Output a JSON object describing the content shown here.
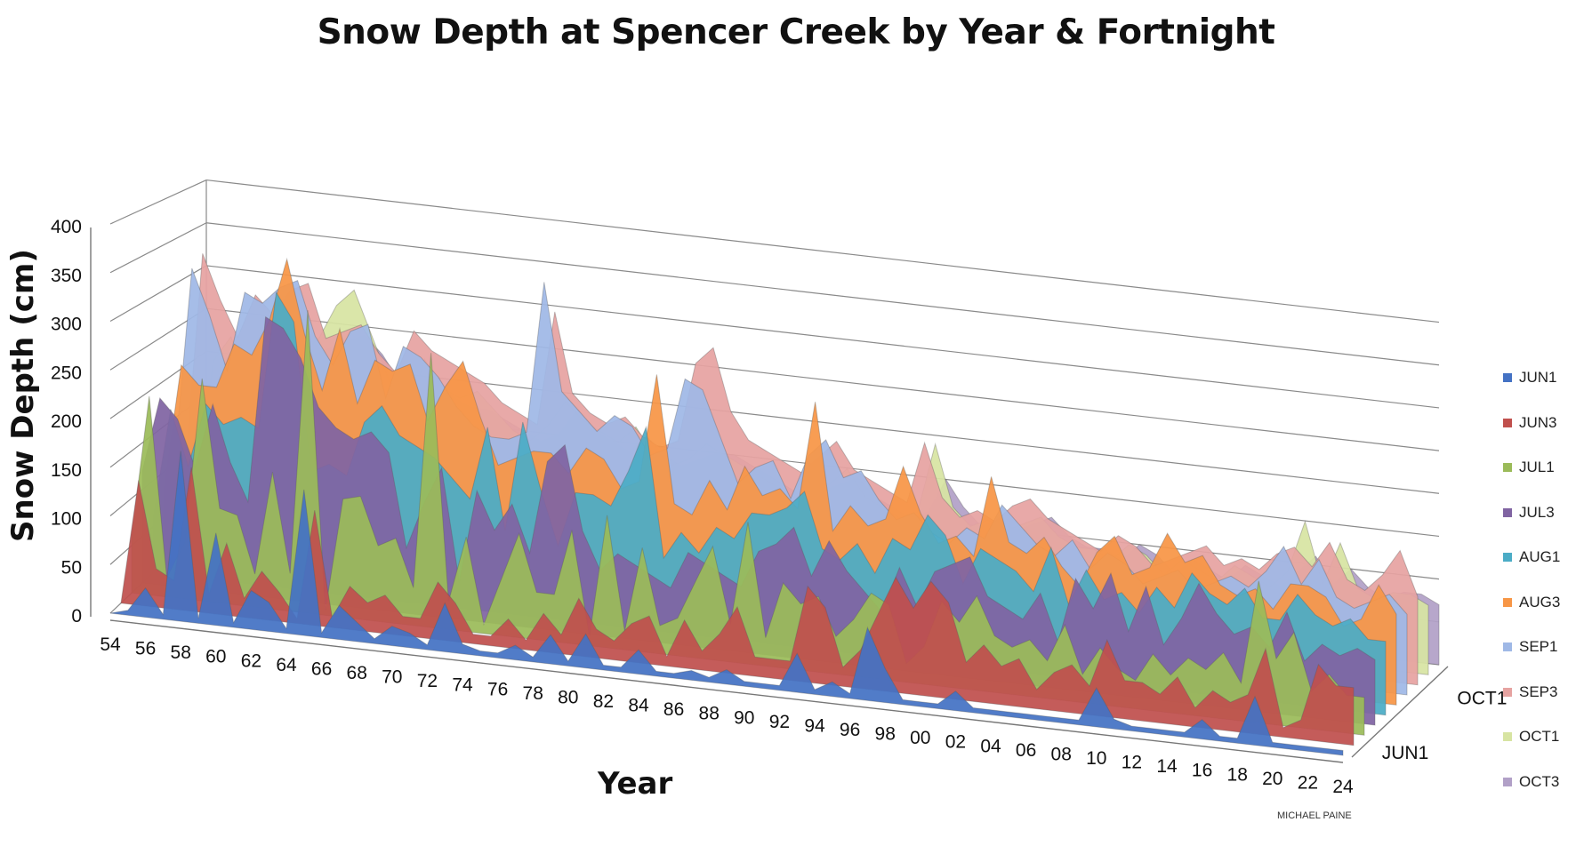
{
  "chart_data": {
    "type": "area",
    "subtype": "3d-area",
    "title": "Snow Depth at Spencer Creek by Year & Fortnight",
    "xlabel": "Year",
    "ylabel": "Snow Depth (cm)",
    "ylim": [
      0,
      400
    ],
    "y_ticks": [
      "0",
      "50",
      "100",
      "150",
      "200",
      "250",
      "300",
      "350",
      "400"
    ],
    "x_tick_labels": [
      "54",
      "56",
      "58",
      "60",
      "62",
      "64",
      "66",
      "68",
      "70",
      "72",
      "74",
      "76",
      "78",
      "80",
      "82",
      "84",
      "86",
      "88",
      "90",
      "92",
      "94",
      "96",
      "98",
      "00",
      "02",
      "04",
      "06",
      "08",
      "10",
      "12",
      "14",
      "16",
      "18",
      "20",
      "22",
      "24"
    ],
    "depth_tick_labels": [
      "JUN1",
      "OCT1"
    ],
    "legend_position": "right",
    "grid": true,
    "credit": "MICHAEL PAINE",
    "years": [
      1954,
      1955,
      1956,
      1957,
      1958,
      1959,
      1960,
      1961,
      1962,
      1963,
      1964,
      1965,
      1966,
      1967,
      1968,
      1969,
      1970,
      1971,
      1972,
      1973,
      1974,
      1975,
      1976,
      1977,
      1978,
      1979,
      1980,
      1981,
      1982,
      1983,
      1984,
      1985,
      1986,
      1987,
      1988,
      1989,
      1990,
      1991,
      1992,
      1993,
      1994,
      1995,
      1996,
      1997,
      1998,
      1999,
      2000,
      2001,
      2002,
      2003,
      2004,
      2005,
      2006,
      2007,
      2008,
      2009,
      2010,
      2011,
      2012,
      2013,
      2014,
      2015,
      2016,
      2017,
      2018,
      2019,
      2020,
      2021,
      2022,
      2023,
      2024
    ],
    "series": [
      {
        "name": "JUN1",
        "color": "#4472C4",
        "values": [
          0,
          5,
          30,
          5,
          175,
          5,
          95,
          5,
          40,
          30,
          5,
          150,
          5,
          35,
          20,
          5,
          20,
          15,
          5,
          50,
          10,
          5,
          5,
          15,
          5,
          30,
          5,
          35,
          5,
          5,
          25,
          5,
          5,
          10,
          5,
          15,
          5,
          5,
          5,
          40,
          5,
          15,
          5,
          75,
          35,
          5,
          5,
          5,
          20,
          5,
          5,
          5,
          5,
          5,
          5,
          5,
          40,
          10,
          5,
          5,
          5,
          5,
          20,
          5,
          5,
          50,
          5,
          5,
          5,
          5,
          5
        ]
      },
      {
        "name": "JUN3",
        "color": "#C0504D",
        "values": [
          0,
          130,
          40,
          30,
          150,
          20,
          75,
          20,
          50,
          30,
          5,
          120,
          10,
          45,
          30,
          40,
          20,
          20,
          60,
          40,
          10,
          10,
          30,
          10,
          40,
          20,
          60,
          30,
          20,
          40,
          50,
          10,
          50,
          20,
          40,
          70,
          20,
          20,
          20,
          100,
          80,
          20,
          40,
          80,
          120,
          90,
          120,
          100,
          40,
          60,
          40,
          50,
          20,
          40,
          50,
          30,
          80,
          40,
          40,
          30,
          50,
          20,
          40,
          30,
          40,
          90,
          10,
          20,
          80,
          60,
          60
        ]
      },
      {
        "name": "JUL1",
        "color": "#9BBB59",
        "values": [
          60,
          210,
          20,
          60,
          235,
          100,
          95,
          35,
          145,
          40,
          320,
          5,
          125,
          130,
          80,
          90,
          40,
          290,
          30,
          100,
          10,
          60,
          110,
          50,
          50,
          120,
          10,
          140,
          20,
          110,
          30,
          40,
          80,
          120,
          40,
          150,
          30,
          90,
          70,
          80,
          40,
          60,
          90,
          80,
          20,
          40,
          90,
          70,
          100,
          60,
          50,
          60,
          40,
          80,
          30,
          60,
          40,
          30,
          60,
          40,
          60,
          50,
          70,
          40,
          150,
          70,
          100,
          40,
          60,
          40,
          40
        ]
      },
      {
        "name": "JUL3",
        "color": "#8064A2",
        "values": [
          120,
          200,
          180,
          130,
          200,
          140,
          100,
          300,
          290,
          260,
          210,
          190,
          180,
          190,
          170,
          70,
          120,
          160,
          40,
          140,
          100,
          130,
          80,
          180,
          200,
          110,
          70,
          90,
          80,
          70,
          60,
          100,
          90,
          80,
          70,
          110,
          120,
          140,
          90,
          130,
          100,
          80,
          60,
          110,
          70,
          110,
          120,
          130,
          90,
          80,
          70,
          100,
          50,
          120,
          90,
          130,
          70,
          120,
          60,
          90,
          130,
          100,
          80,
          90,
          70,
          110,
          60,
          80,
          70,
          80,
          70
        ]
      },
      {
        "name": "AUG1",
        "color": "#4BACC6",
        "values": [
          60,
          180,
          120,
          190,
          170,
          180,
          170,
          320,
          290,
          130,
          140,
          130,
          190,
          210,
          180,
          170,
          160,
          140,
          120,
          200,
          90,
          210,
          140,
          80,
          140,
          140,
          130,
          170,
          220,
          80,
          110,
          90,
          120,
          110,
          140,
          140,
          150,
          170,
          110,
          100,
          120,
          90,
          130,
          120,
          160,
          140,
          90,
          130,
          120,
          110,
          90,
          140,
          80,
          120,
          90,
          100,
          80,
          110,
          90,
          130,
          110,
          100,
          120,
          90,
          90,
          120,
          100,
          90,
          100,
          80,
          80
        ]
      },
      {
        "name": "AUG3",
        "color": "#F79646",
        "values": [
          80,
          220,
          200,
          200,
          250,
          240,
          280,
          350,
          270,
          210,
          280,
          200,
          250,
          240,
          250,
          190,
          230,
          260,
          200,
          150,
          160,
          170,
          170,
          150,
          180,
          170,
          140,
          150,
          270,
          130,
          120,
          160,
          130,
          180,
          150,
          160,
          140,
          260,
          120,
          150,
          130,
          140,
          200,
          150,
          120,
          130,
          110,
          200,
          130,
          120,
          140,
          110,
          90,
          130,
          150,
          110,
          120,
          160,
          130,
          140,
          110,
          100,
          110,
          90,
          120,
          120,
          110,
          80,
          90,
          130,
          100
        ]
      },
      {
        "name": "SEP1",
        "color": "#9FB8E6",
        "values": [
          100,
          320,
          270,
          210,
          300,
          290,
          310,
          320,
          260,
          230,
          270,
          280,
          200,
          260,
          250,
          230,
          200,
          180,
          170,
          170,
          180,
          350,
          230,
          210,
          190,
          210,
          200,
          170,
          180,
          260,
          250,
          200,
          150,
          170,
          180,
          140,
          190,
          210,
          170,
          180,
          150,
          130,
          140,
          120,
          110,
          130,
          120,
          160,
          140,
          120,
          110,
          130,
          100,
          120,
          110,
          90,
          100,
          110,
          90,
          100,
          110,
          100,
          120,
          150,
          110,
          140,
          100,
          90,
          100,
          110,
          90
        ]
      },
      {
        "name": "SEP3",
        "color": "#E6A3A1",
        "values": [
          80,
          330,
          280,
          240,
          290,
          270,
          300,
          310,
          250,
          260,
          270,
          240,
          220,
          270,
          250,
          240,
          230,
          220,
          200,
          190,
          180,
          310,
          220,
          200,
          190,
          200,
          180,
          170,
          180,
          270,
          290,
          220,
          190,
          180,
          170,
          160,
          180,
          200,
          170,
          160,
          150,
          140,
          210,
          150,
          130,
          140,
          130,
          150,
          160,
          140,
          130,
          120,
          110,
          130,
          120,
          100,
          110,
          120,
          130,
          110,
          120,
          110,
          130,
          140,
          120,
          150,
          110,
          100,
          120,
          150,
          100
        ]
      },
      {
        "name": "OCT1",
        "color": "#D7E4A2",
        "values": [
          40,
          200,
          230,
          180,
          230,
          210,
          220,
          240,
          280,
          300,
          250,
          200,
          160,
          230,
          200,
          190,
          200,
          180,
          160,
          150,
          170,
          200,
          180,
          170,
          160,
          180,
          150,
          140,
          150,
          170,
          160,
          150,
          140,
          130,
          120,
          130,
          140,
          160,
          130,
          120,
          110,
          120,
          200,
          130,
          110,
          120,
          110,
          120,
          130,
          110,
          100,
          100,
          90,
          110,
          100,
          80,
          100,
          90,
          80,
          100,
          90,
          80,
          100,
          160,
          90,
          140,
          90,
          80,
          90,
          90,
          80
        ]
      },
      {
        "name": "OCT3",
        "color": "#B1A0C7",
        "values": [
          30,
          190,
          210,
          170,
          210,
          200,
          210,
          220,
          230,
          240,
          220,
          190,
          150,
          200,
          180,
          170,
          170,
          160,
          150,
          140,
          150,
          180,
          160,
          150,
          140,
          160,
          140,
          130,
          140,
          150,
          150,
          140,
          130,
          120,
          110,
          120,
          130,
          140,
          120,
          110,
          100,
          110,
          150,
          120,
          100,
          110,
          100,
          110,
          120,
          100,
          90,
          90,
          80,
          100,
          90,
          70,
          90,
          80,
          70,
          90,
          80,
          70,
          90,
          110,
          80,
          100,
          80,
          70,
          80,
          80,
          70
        ]
      }
    ]
  }
}
